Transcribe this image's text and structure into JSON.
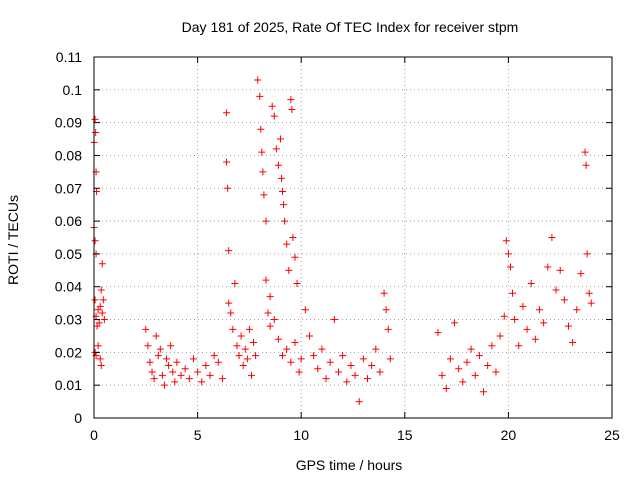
{
  "chart_data": {
    "type": "scatter",
    "title": "Day 181 of 2025, Rate Of TEC Index for receiver stpm",
    "xlabel": "GPS time / hours",
    "ylabel": "ROTI / TECUs",
    "xlim": [
      0,
      25
    ],
    "ylim": [
      0,
      0.11
    ],
    "xticks": [
      0,
      5,
      10,
      15,
      20,
      25
    ],
    "xtick_labels": [
      "0",
      "5",
      "10",
      "15",
      "20",
      "25"
    ],
    "yticks": [
      0,
      0.01,
      0.02,
      0.03,
      0.04,
      0.05,
      0.06,
      0.07,
      0.08,
      0.09,
      0.1,
      0.11
    ],
    "ytick_labels": [
      "0",
      "0.01",
      "0.02",
      "0.03",
      "0.04",
      "0.05",
      "0.06",
      "0.07",
      "0.08",
      "0.09",
      "0.1",
      "0.11"
    ],
    "grid": true,
    "grid_style": "dotted",
    "marker": "+",
    "marker_color": "#ff0000",
    "series": [
      {
        "points": [
          [
            0.0,
            0.084
          ],
          [
            0.05,
            0.091
          ],
          [
            0.08,
            0.087
          ],
          [
            0.1,
            0.075
          ],
          [
            0.12,
            0.069
          ],
          [
            0.0,
            0.058
          ],
          [
            0.05,
            0.054
          ],
          [
            0.1,
            0.05
          ],
          [
            0.05,
            0.036
          ],
          [
            0.1,
            0.031
          ],
          [
            0.15,
            0.028
          ],
          [
            0.2,
            0.033
          ],
          [
            0.25,
            0.029
          ],
          [
            0.3,
            0.034
          ],
          [
            0.35,
            0.039
          ],
          [
            0.4,
            0.032
          ],
          [
            0.05,
            0.02
          ],
          [
            0.1,
            0.019
          ],
          [
            0.2,
            0.022
          ],
          [
            0.3,
            0.018
          ],
          [
            0.35,
            0.016
          ],
          [
            0.4,
            0.047
          ],
          [
            0.45,
            0.036
          ],
          [
            0.5,
            0.03
          ],
          [
            2.5,
            0.027
          ],
          [
            2.6,
            0.022
          ],
          [
            2.7,
            0.017
          ],
          [
            2.8,
            0.014
          ],
          [
            2.9,
            0.012
          ],
          [
            3.0,
            0.025
          ],
          [
            3.1,
            0.019
          ],
          [
            3.2,
            0.021
          ],
          [
            3.3,
            0.013
          ],
          [
            3.4,
            0.01
          ],
          [
            3.5,
            0.018
          ],
          [
            3.6,
            0.016
          ],
          [
            3.7,
            0.022
          ],
          [
            3.8,
            0.014
          ],
          [
            3.9,
            0.011
          ],
          [
            4.0,
            0.017
          ],
          [
            4.2,
            0.013
          ],
          [
            4.4,
            0.015
          ],
          [
            4.6,
            0.012
          ],
          [
            4.8,
            0.018
          ],
          [
            5.0,
            0.014
          ],
          [
            5.2,
            0.011
          ],
          [
            5.4,
            0.016
          ],
          [
            5.6,
            0.013
          ],
          [
            5.8,
            0.019
          ],
          [
            6.0,
            0.017
          ],
          [
            6.2,
            0.012
          ],
          [
            6.4,
            0.093
          ],
          [
            6.4,
            0.078
          ],
          [
            6.45,
            0.07
          ],
          [
            6.5,
            0.051
          ],
          [
            6.5,
            0.035
          ],
          [
            6.6,
            0.032
          ],
          [
            6.7,
            0.027
          ],
          [
            6.8,
            0.041
          ],
          [
            6.9,
            0.022
          ],
          [
            7.0,
            0.019
          ],
          [
            7.1,
            0.025
          ],
          [
            7.2,
            0.016
          ],
          [
            7.3,
            0.021
          ],
          [
            7.4,
            0.018
          ],
          [
            7.5,
            0.027
          ],
          [
            7.6,
            0.013
          ],
          [
            7.7,
            0.023
          ],
          [
            7.8,
            0.019
          ],
          [
            7.9,
            0.103
          ],
          [
            8.0,
            0.098
          ],
          [
            8.05,
            0.088
          ],
          [
            8.1,
            0.081
          ],
          [
            8.15,
            0.075
          ],
          [
            8.2,
            0.068
          ],
          [
            8.3,
            0.06
          ],
          [
            8.4,
            0.032
          ],
          [
            8.5,
            0.028
          ],
          [
            8.6,
            0.095
          ],
          [
            8.7,
            0.092
          ],
          [
            8.8,
            0.082
          ],
          [
            8.9,
            0.077
          ],
          [
            9.0,
            0.085
          ],
          [
            9.05,
            0.073
          ],
          [
            9.1,
            0.069
          ],
          [
            9.15,
            0.065
          ],
          [
            9.2,
            0.06
          ],
          [
            9.3,
            0.053
          ],
          [
            9.4,
            0.045
          ],
          [
            9.5,
            0.097
          ],
          [
            9.55,
            0.094
          ],
          [
            9.6,
            0.055
          ],
          [
            9.7,
            0.049
          ],
          [
            9.8,
            0.041
          ],
          [
            8.3,
            0.042
          ],
          [
            8.5,
            0.037
          ],
          [
            8.7,
            0.03
          ],
          [
            8.9,
            0.024
          ],
          [
            9.1,
            0.019
          ],
          [
            9.3,
            0.021
          ],
          [
            9.5,
            0.017
          ],
          [
            9.7,
            0.023
          ],
          [
            9.9,
            0.014
          ],
          [
            10.0,
            0.018
          ],
          [
            10.2,
            0.033
          ],
          [
            10.4,
            0.025
          ],
          [
            10.6,
            0.019
          ],
          [
            10.8,
            0.015
          ],
          [
            11.0,
            0.021
          ],
          [
            11.2,
            0.012
          ],
          [
            11.4,
            0.017
          ],
          [
            11.6,
            0.03
          ],
          [
            11.8,
            0.014
          ],
          [
            12.0,
            0.019
          ],
          [
            12.2,
            0.011
          ],
          [
            12.4,
            0.016
          ],
          [
            12.6,
            0.013
          ],
          [
            12.8,
            0.005
          ],
          [
            13.0,
            0.018
          ],
          [
            13.2,
            0.012
          ],
          [
            13.4,
            0.016
          ],
          [
            13.6,
            0.021
          ],
          [
            13.8,
            0.014
          ],
          [
            14.0,
            0.038
          ],
          [
            14.1,
            0.033
          ],
          [
            14.2,
            0.027
          ],
          [
            14.3,
            0.018
          ],
          [
            16.6,
            0.026
          ],
          [
            16.8,
            0.013
          ],
          [
            17.0,
            0.009
          ],
          [
            17.2,
            0.018
          ],
          [
            17.4,
            0.029
          ],
          [
            17.6,
            0.015
          ],
          [
            17.8,
            0.011
          ],
          [
            18.0,
            0.017
          ],
          [
            18.2,
            0.021
          ],
          [
            18.4,
            0.013
          ],
          [
            18.6,
            0.019
          ],
          [
            18.8,
            0.008
          ],
          [
            19.0,
            0.016
          ],
          [
            19.2,
            0.022
          ],
          [
            19.4,
            0.014
          ],
          [
            19.6,
            0.025
          ],
          [
            19.8,
            0.031
          ],
          [
            19.9,
            0.054
          ],
          [
            20.0,
            0.05
          ],
          [
            20.1,
            0.046
          ],
          [
            20.2,
            0.038
          ],
          [
            20.3,
            0.03
          ],
          [
            20.5,
            0.022
          ],
          [
            20.7,
            0.034
          ],
          [
            20.9,
            0.027
          ],
          [
            21.1,
            0.041
          ],
          [
            21.3,
            0.024
          ],
          [
            21.5,
            0.033
          ],
          [
            21.7,
            0.029
          ],
          [
            21.9,
            0.046
          ],
          [
            22.1,
            0.055
          ],
          [
            22.3,
            0.039
          ],
          [
            22.5,
            0.045
          ],
          [
            22.7,
            0.036
          ],
          [
            22.9,
            0.028
          ],
          [
            23.1,
            0.023
          ],
          [
            23.3,
            0.033
          ],
          [
            23.5,
            0.044
          ],
          [
            23.7,
            0.081
          ],
          [
            23.75,
            0.077
          ],
          [
            23.8,
            0.05
          ],
          [
            23.9,
            0.038
          ],
          [
            24.0,
            0.035
          ]
        ]
      }
    ]
  }
}
